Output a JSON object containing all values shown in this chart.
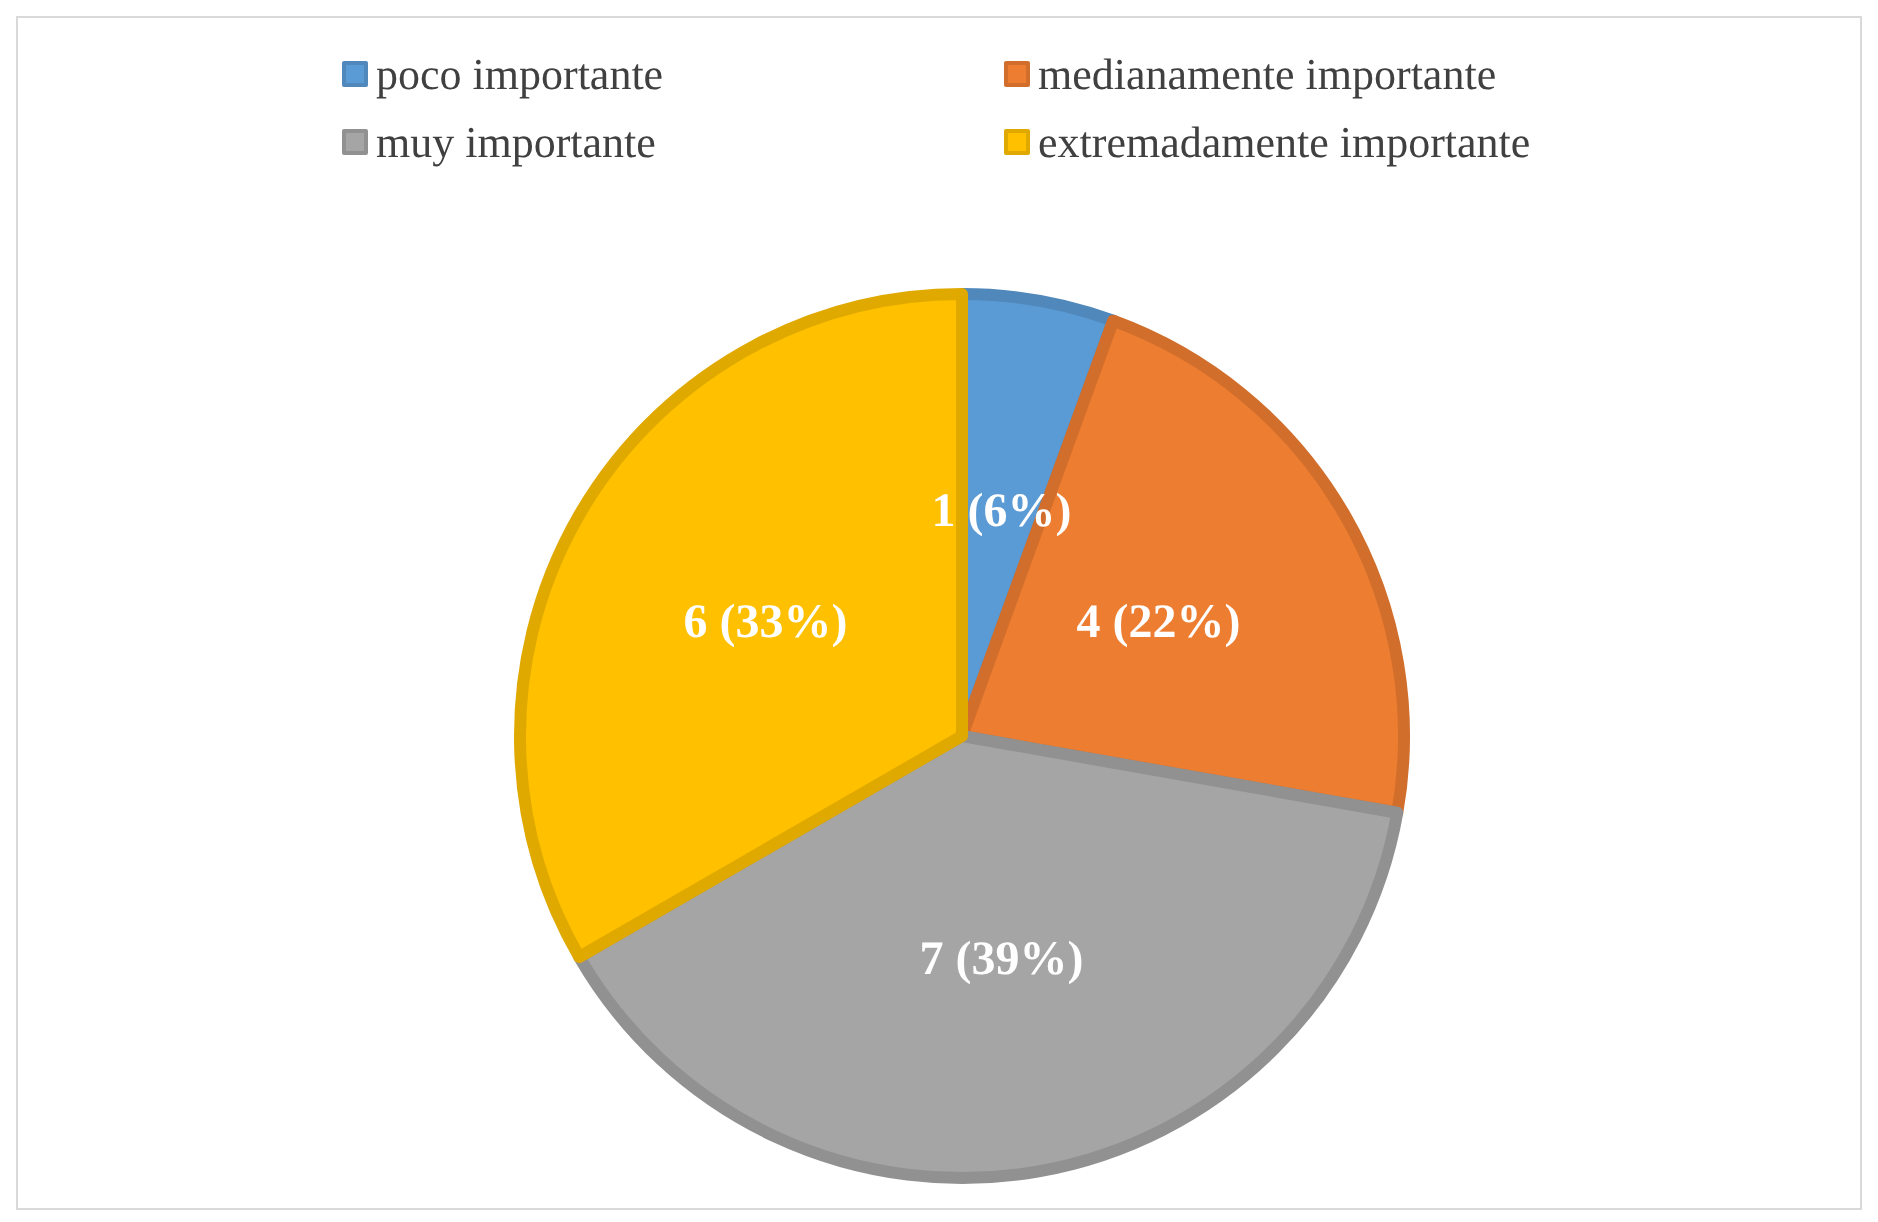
{
  "chart_data": {
    "type": "pie",
    "categories": [
      "poco importante",
      "medianamente importante",
      "muy importante",
      "extremadamente importante"
    ],
    "values": [
      1,
      4,
      7,
      6
    ],
    "colors": [
      "#5b9bd5",
      "#ed7d31",
      "#a5a5a5",
      "#ffc000"
    ],
    "value_labels": [
      "1 (6%)",
      "4 (22%)",
      "7 (39%)",
      "6 (33%)"
    ],
    "legend": "top"
  }
}
